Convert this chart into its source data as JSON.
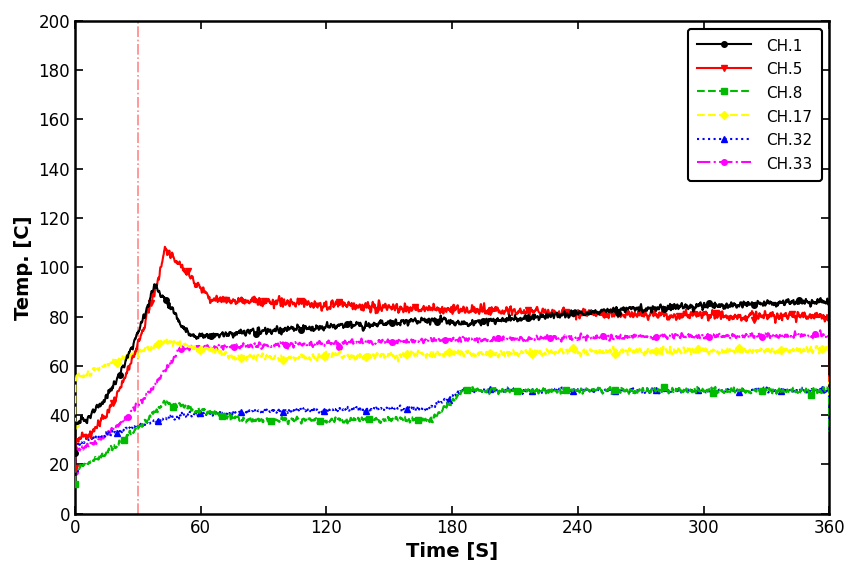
{
  "xlabel": "Time [S]",
  "ylabel": "Temp. [C]",
  "xlim": [
    0,
    360
  ],
  "ylim": [
    0,
    200
  ],
  "xticks": [
    0,
    60,
    120,
    180,
    240,
    300,
    360
  ],
  "yticks": [
    0,
    20,
    40,
    60,
    80,
    100,
    120,
    140,
    160,
    180,
    200
  ],
  "vline_x": 30,
  "channels": [
    "CH.1",
    "CH.5",
    "CH.8",
    "CH.17",
    "CH.32",
    "CH.33"
  ],
  "colors": [
    "#000000",
    "#ff0000",
    "#00bb00",
    "#ffff00",
    "#0000ff",
    "#ff00ff"
  ],
  "linestyles": [
    "-",
    "-",
    "--",
    "--",
    ":",
    "-."
  ],
  "markers": [
    "o",
    "v",
    "s",
    "D",
    "^",
    "o"
  ],
  "marker_sizes": [
    4,
    4,
    4,
    4,
    4,
    4
  ],
  "linewidths": [
    1.5,
    1.5,
    1.5,
    1.5,
    1.5,
    1.5
  ],
  "background_color": "#ffffff"
}
